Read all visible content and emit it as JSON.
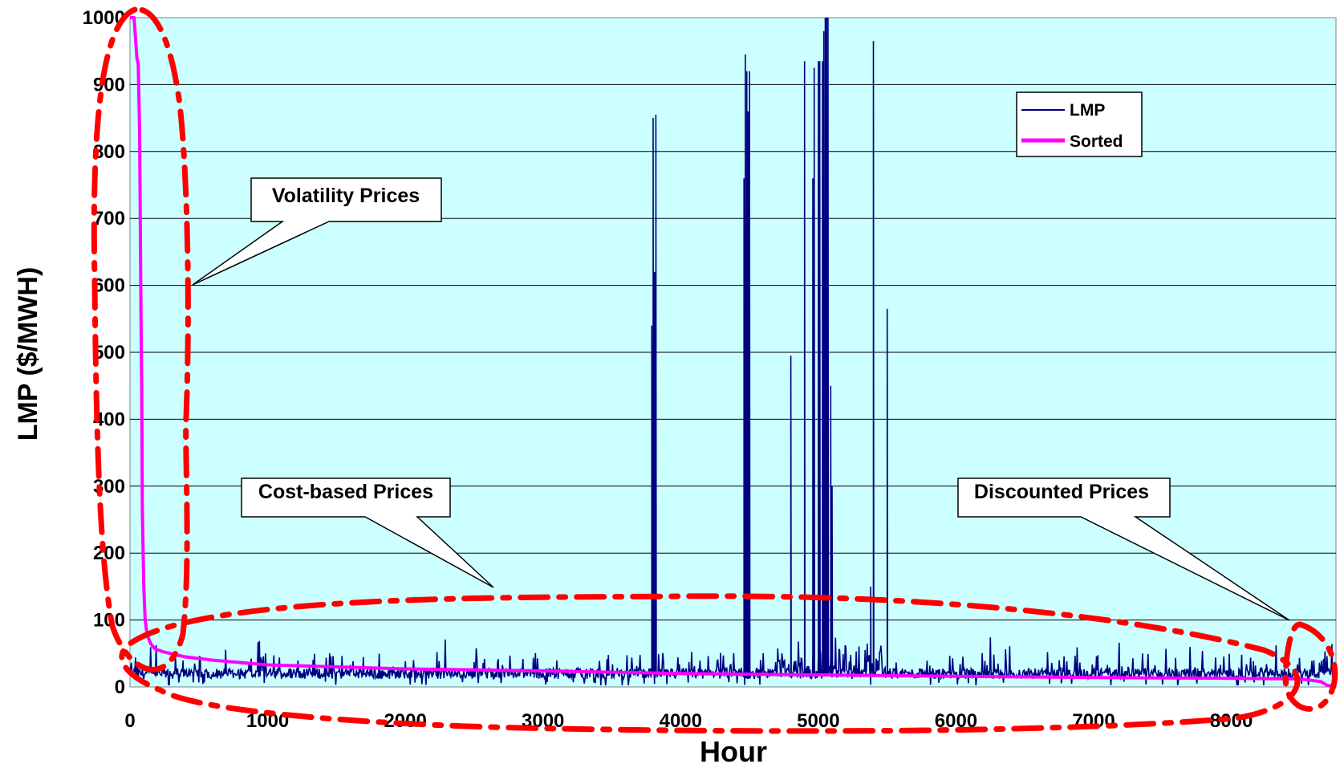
{
  "chart_data": {
    "type": "line",
    "xlabel": "Hour",
    "ylabel": "LMP ($/MWH)",
    "xlim": [
      0,
      8760
    ],
    "ylim": [
      0,
      1000
    ],
    "x_ticks": [
      0,
      1000,
      2000,
      3000,
      4000,
      5000,
      6000,
      7000,
      8000
    ],
    "y_ticks": [
      0,
      100,
      200,
      300,
      400,
      500,
      600,
      700,
      800,
      900,
      1000
    ],
    "grid": "horizontal",
    "plot_background": "#CCFFFF",
    "legend_position": "top-right",
    "series": [
      {
        "name": "LMP",
        "color": "#000080",
        "baseline": "noisy hourly prices mostly between 10 and 50 $/MWH",
        "spikes": [
          {
            "x": 3790,
            "y": 540
          },
          {
            "x": 3800,
            "y": 850
          },
          {
            "x": 3810,
            "y": 620
          },
          {
            "x": 3820,
            "y": 855
          },
          {
            "x": 4460,
            "y": 760
          },
          {
            "x": 4470,
            "y": 945
          },
          {
            "x": 4480,
            "y": 920
          },
          {
            "x": 4490,
            "y": 860
          },
          {
            "x": 4500,
            "y": 920
          },
          {
            "x": 4800,
            "y": 495
          },
          {
            "x": 4900,
            "y": 935
          },
          {
            "x": 4960,
            "y": 760
          },
          {
            "x": 4970,
            "y": 925
          },
          {
            "x": 5000,
            "y": 935
          },
          {
            "x": 5010,
            "y": 935
          },
          {
            "x": 5030,
            "y": 935
          },
          {
            "x": 5040,
            "y": 980
          },
          {
            "x": 5050,
            "y": 1000
          },
          {
            "x": 5060,
            "y": 1000
          },
          {
            "x": 5070,
            "y": 1000
          },
          {
            "x": 5090,
            "y": 450
          },
          {
            "x": 5100,
            "y": 300
          },
          {
            "x": 5380,
            "y": 150
          },
          {
            "x": 5400,
            "y": 965
          },
          {
            "x": 5500,
            "y": 565
          }
        ]
      },
      {
        "name": "Sorted",
        "color": "#FF00FF",
        "x": [
          0,
          30,
          50,
          60,
          70,
          80,
          85,
          90,
          100,
          110,
          120,
          130,
          150,
          180,
          250,
          400,
          600,
          1000,
          1500,
          2000,
          3000,
          4000,
          5000,
          6000,
          7000,
          8000,
          8500,
          8650,
          8700,
          8760
        ],
        "y": [
          1000,
          1000,
          940,
          930,
          830,
          560,
          450,
          265,
          150,
          100,
          85,
          75,
          65,
          57,
          52,
          45,
          40,
          33,
          30,
          27,
          24,
          20,
          18,
          16,
          14,
          13,
          12,
          8,
          2,
          1
        ]
      }
    ],
    "annotations": [
      {
        "text": "Volatility Prices"
      },
      {
        "text": "Cost-based Prices"
      },
      {
        "text": "Discounted Prices"
      }
    ]
  }
}
